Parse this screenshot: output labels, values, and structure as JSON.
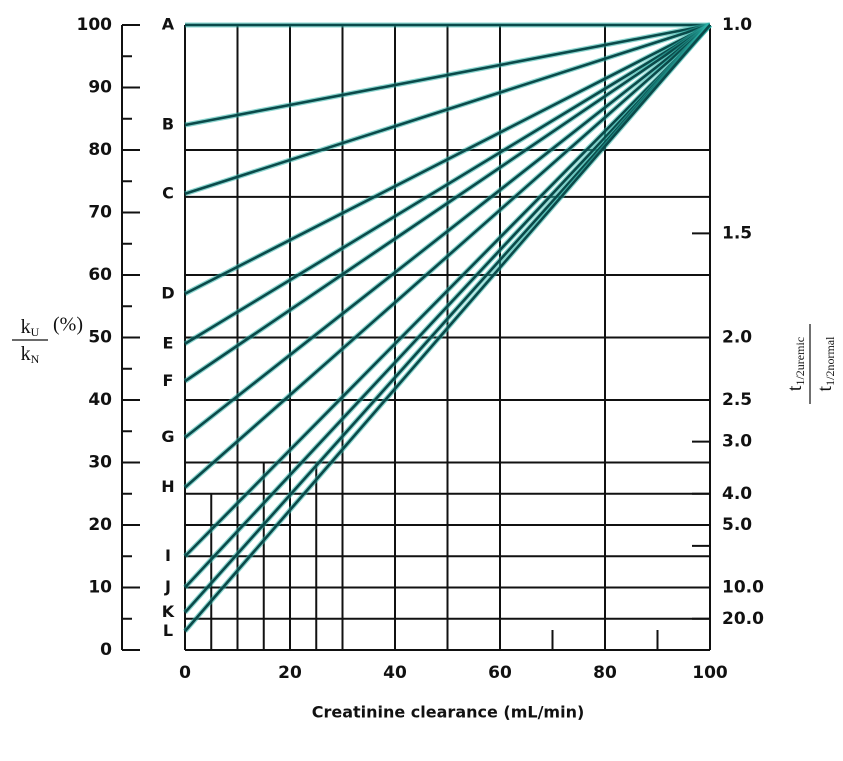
{
  "chart_data": {
    "type": "line",
    "x_label": "Creatinine clearance (mL/min)",
    "y_label": {
      "numerator": "k",
      "num_sub": "U",
      "denominator": "k",
      "den_sub": "N",
      "unit": "(%)"
    },
    "y2_label": {
      "numerator": "t",
      "num_sub": "1/2uremic",
      "denominator": "t",
      "den_sub": "1/2normal"
    },
    "xlim": [
      0,
      100
    ],
    "xticks": [
      0,
      20,
      40,
      60,
      80,
      100
    ],
    "ylim": [
      0,
      100
    ],
    "yticks": [
      0,
      10,
      20,
      30,
      40,
      50,
      60,
      70,
      80,
      90,
      100
    ],
    "yminor": [
      5,
      15,
      25,
      35,
      45,
      55,
      65,
      75,
      85,
      95
    ],
    "y2scale": "reciprocal",
    "y2ticks": [
      {
        "value": 1,
        "label": "1.0"
      },
      {
        "value": 1.5,
        "label": "1.5"
      },
      {
        "value": 2,
        "label": "2.0"
      },
      {
        "value": 2.5,
        "label": "2.5"
      },
      {
        "value": 3,
        "label": "3.0"
      },
      {
        "value": 4,
        "label": "4.0"
      },
      {
        "value": 5,
        "label": "5.0"
      },
      {
        "value": 10,
        "label": "10.0"
      },
      {
        "value": 20,
        "label": "20.0"
      }
    ],
    "y2minor": [
      6
    ],
    "hgrid": [
      100,
      80,
      72.5,
      60,
      50,
      40,
      30,
      25,
      20,
      15,
      10,
      5,
      0
    ],
    "vgrid": [
      0,
      10,
      20,
      30,
      40,
      50,
      60,
      80,
      100
    ],
    "vgrid_partial": [
      {
        "x": 5,
        "top": 25
      },
      {
        "x": 15,
        "top": 30
      },
      {
        "x": 25,
        "top": 30
      }
    ],
    "xminor": [
      70,
      90
    ],
    "color": "#0a4a4a",
    "x": [
      0,
      100
    ],
    "series": [
      {
        "name": "A",
        "values": [
          100,
          100
        ]
      },
      {
        "name": "B",
        "values": [
          84,
          100
        ]
      },
      {
        "name": "C",
        "values": [
          73,
          100
        ]
      },
      {
        "name": "D",
        "values": [
          57,
          100
        ]
      },
      {
        "name": "E",
        "values": [
          49,
          100
        ]
      },
      {
        "name": "F",
        "values": [
          43,
          100
        ]
      },
      {
        "name": "G",
        "values": [
          34,
          100
        ]
      },
      {
        "name": "H",
        "values": [
          26,
          100
        ]
      },
      {
        "name": "I",
        "values": [
          15,
          100
        ]
      },
      {
        "name": "J",
        "values": [
          10,
          100
        ]
      },
      {
        "name": "K",
        "values": [
          6,
          100
        ]
      },
      {
        "name": "L",
        "values": [
          3,
          100
        ]
      }
    ]
  }
}
